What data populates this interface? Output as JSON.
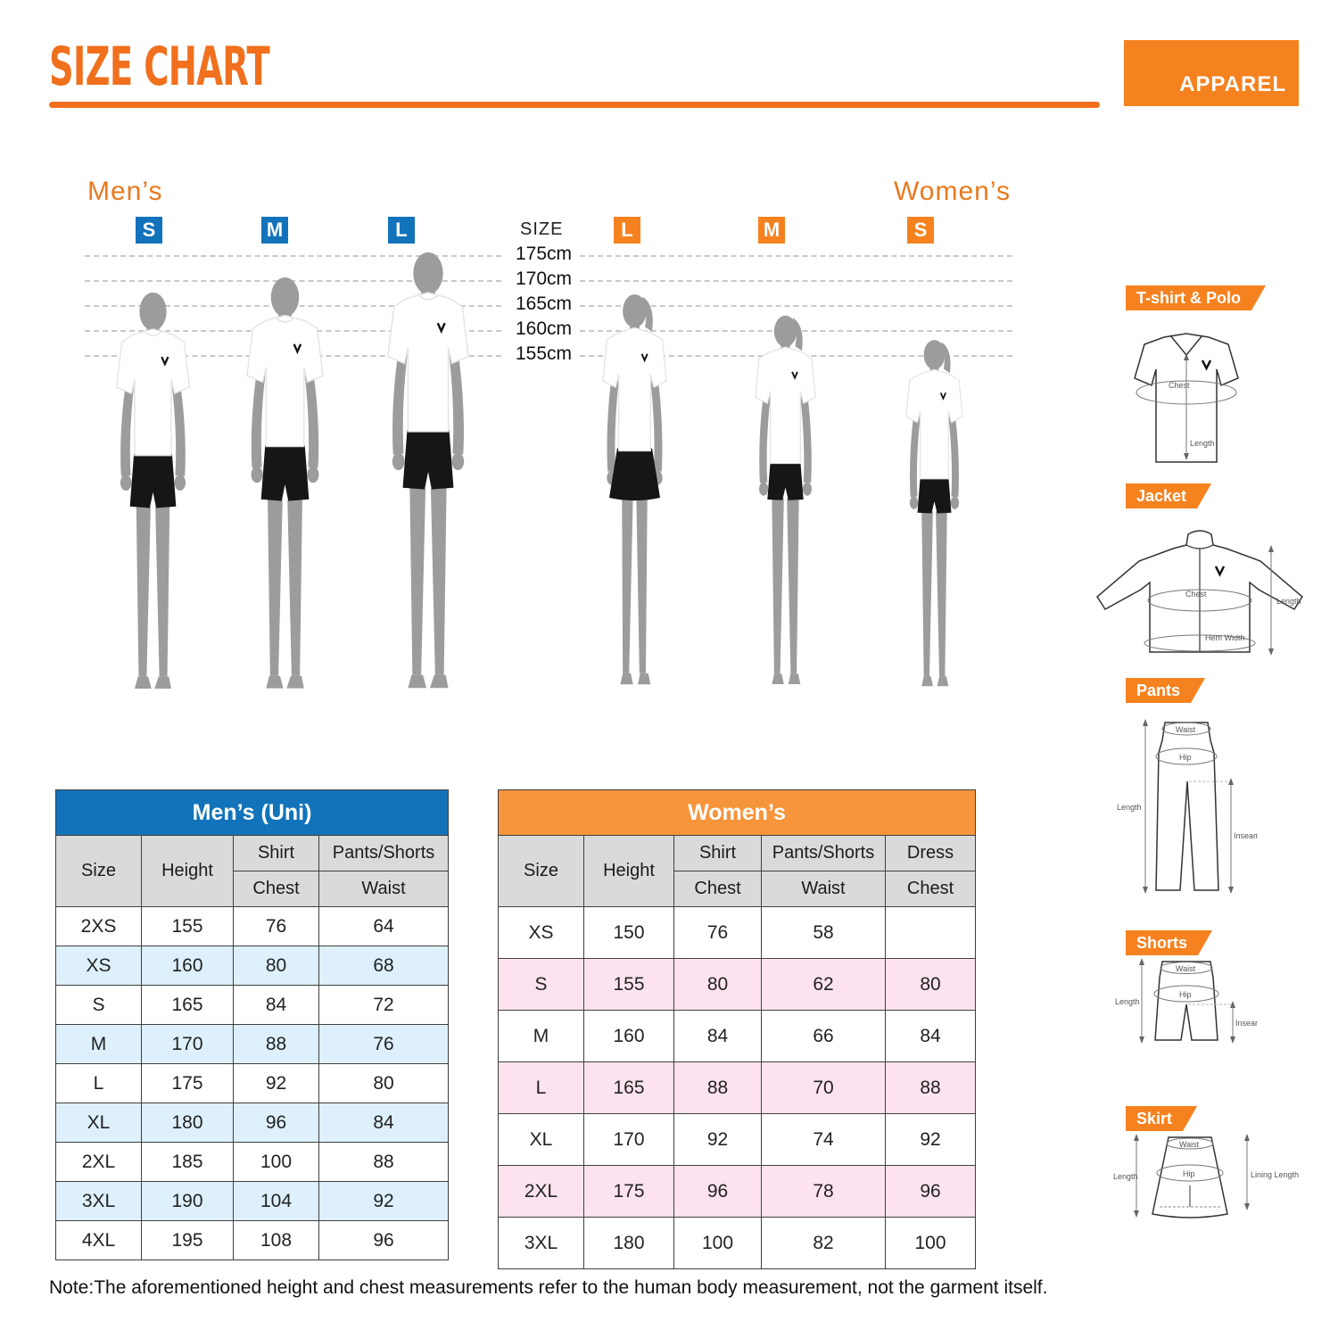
{
  "colors": {
    "accent_orange": "#F0701D",
    "ribbon_orange": "#F5821F",
    "table_header_orange": "#F6953C",
    "table_header_blue": "#1273BA",
    "row_tint_blue": "#DDF0FB",
    "row_tint_pink": "#FCE3EF"
  },
  "header": {
    "title": "SIZE CHART",
    "badge": "APPAREL"
  },
  "figure_panel": {
    "mens_label": "Men’s",
    "womens_label": "Women’s",
    "size_axis_label": "SIZE",
    "height_labels": [
      "175cm",
      "170cm",
      "165cm",
      "160cm",
      "155cm"
    ],
    "mens_sizes": [
      "S",
      "M",
      "L"
    ],
    "womens_sizes": [
      "L",
      "M",
      "S"
    ]
  },
  "sidebar": {
    "items": [
      {
        "label": "T-shirt & Polo",
        "annotations": {
          "chest": "Chest",
          "length": "Length"
        }
      },
      {
        "label": "Jacket",
        "annotations": {
          "chest": "Chest",
          "hem": "Hem Width",
          "length": "Length"
        }
      },
      {
        "label": "Pants",
        "annotations": {
          "waist": "Waist",
          "hip": "Hip",
          "length": "Length",
          "inseam": "Inseam"
        }
      },
      {
        "label": "Shorts",
        "annotations": {
          "waist": "Waist",
          "hip": "Hip",
          "length": "Length",
          "inseam": "Inseam"
        }
      },
      {
        "label": "Skirt",
        "annotations": {
          "waist": "Waist",
          "hip": "Hip",
          "length": "Length",
          "lining": "Lining Length"
        }
      }
    ]
  },
  "tables": {
    "mens": {
      "title": "Men’s (Uni)",
      "col_headers": {
        "size": "Size",
        "height": "Height",
        "shirt": "Shirt",
        "chest": "Chest",
        "pants": "Pants/Shorts",
        "waist": "Waist"
      },
      "rows": [
        [
          "2XS",
          "155",
          "76",
          "64"
        ],
        [
          "XS",
          "160",
          "80",
          "68"
        ],
        [
          "S",
          "165",
          "84",
          "72"
        ],
        [
          "M",
          "170",
          "88",
          "76"
        ],
        [
          "L",
          "175",
          "92",
          "80"
        ],
        [
          "XL",
          "180",
          "96",
          "84"
        ],
        [
          "2XL",
          "185",
          "100",
          "88"
        ],
        [
          "3XL",
          "190",
          "104",
          "92"
        ],
        [
          "4XL",
          "195",
          "108",
          "96"
        ]
      ]
    },
    "womens": {
      "title": "Women’s",
      "col_headers": {
        "size": "Size",
        "height": "Height",
        "shirt": "Shirt",
        "chest": "Chest",
        "pants": "Pants/Shorts",
        "waist": "Waist",
        "dress": "Dress",
        "dress_chest": "Chest"
      },
      "rows": [
        [
          "XS",
          "150",
          "76",
          "58",
          ""
        ],
        [
          "S",
          "155",
          "80",
          "62",
          "80"
        ],
        [
          "M",
          "160",
          "84",
          "66",
          "84"
        ],
        [
          "L",
          "165",
          "88",
          "70",
          "88"
        ],
        [
          "XL",
          "170",
          "92",
          "74",
          "92"
        ],
        [
          "2XL",
          "175",
          "96",
          "78",
          "96"
        ],
        [
          "3XL",
          "180",
          "100",
          "82",
          "100"
        ]
      ]
    }
  },
  "note": "Note:The aforementioned height and chest measurements refer to the human body measurement, not the garment itself."
}
